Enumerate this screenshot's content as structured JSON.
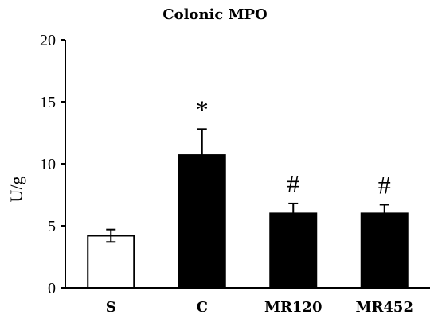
{
  "chart_data": {
    "type": "bar",
    "title": "Colonic MPO",
    "xlabel": "",
    "ylabel": "U/g",
    "ylim": [
      0,
      20
    ],
    "yticks": [
      0,
      5,
      10,
      15,
      20
    ],
    "categories": [
      "S",
      "C",
      "MR120",
      "MR452"
    ],
    "values": [
      4.2,
      10.7,
      6.0,
      6.0
    ],
    "errors": [
      0.5,
      2.1,
      0.8,
      0.7
    ],
    "annotations": [
      "",
      "*",
      "#",
      "#"
    ],
    "bar_fills": [
      "#ffffff",
      "#000000",
      "#000000",
      "#000000"
    ],
    "grid": false
  }
}
